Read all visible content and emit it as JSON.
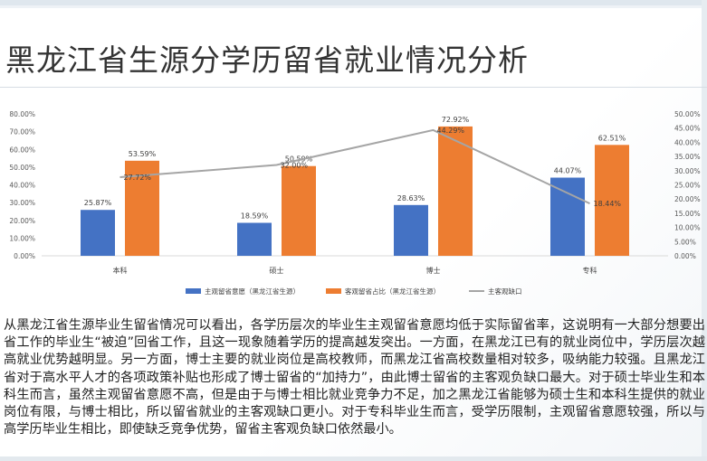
{
  "title": "黑龙江省生源分学历留省就业情况分析",
  "chart_data": {
    "type": "bar",
    "categories": [
      "本科",
      "硕士",
      "博士",
      "专科"
    ],
    "series": [
      {
        "name": "主观留省意愿（黑龙江省生源）",
        "kind": "bar",
        "axis": "left",
        "color": "#4472C4",
        "values": [
          25.87,
          18.59,
          28.63,
          44.07
        ],
        "labels": [
          "25.87%",
          "18.59%",
          "28.63%",
          "44.07%"
        ]
      },
      {
        "name": "客观留省占比（黑龙江省生源）",
        "kind": "bar",
        "axis": "left",
        "color": "#ED7D31",
        "values": [
          53.59,
          50.59,
          72.92,
          62.51
        ],
        "labels": [
          "53.59%",
          "50.59%",
          "72.92%",
          "62.51%"
        ]
      },
      {
        "name": "主客观缺口",
        "kind": "line",
        "axis": "right",
        "color": "#A5A5A5",
        "values": [
          27.72,
          32.0,
          44.29,
          18.44
        ],
        "labels": [
          "27.72%",
          "32.00%",
          "44.29%",
          "18.44%"
        ]
      }
    ],
    "y_left": {
      "min": 0,
      "max": 80,
      "step": 10,
      "ticks": [
        "0.00%",
        "10.00%",
        "20.00%",
        "30.00%",
        "40.00%",
        "50.00%",
        "60.00%",
        "70.00%",
        "80.00%"
      ]
    },
    "y_right": {
      "min": 0,
      "max": 50,
      "step": 5,
      "ticks": [
        "0.00%",
        "5.00%",
        "10.00%",
        "15.00%",
        "20.00%",
        "25.00%",
        "30.00%",
        "35.00%",
        "40.00%",
        "45.00%",
        "50.00%"
      ]
    },
    "grid": false,
    "legend_position": "bottom"
  },
  "paragraph": "从黑龙江省生源毕业生留省情况可以看出，各学历层次的毕业生主观留省意愿均低于实际留省率，这说明有一大部分想要出省工作的毕业生“被迫”回省工作，且这一现象随着学历的提高越发突出。一方面，在黑龙江已有的就业岗位中，学历层次越高就业优势越明显。另一方面，博士主要的就业岗位是高校教师，而黑龙江省高校数量相对较多，吸纳能力较强。且黑龙江省对于高水平人才的各项政策补贴也形成了博士留省的“加持力”，由此博士留省的主客观负缺口最大。对于硕士毕业生和本科生而言，虽然主观留省意愿不高，但是由于与博士相比就业竞争力不足，加之黑龙江省能够为硕士生和本科生提供的就业岗位有限，与博士相比，所以留省就业的主客观缺口更小。对于专科毕业生而言，受学历限制，主观留省意愿较强，所以与高学历毕业生相比，即使缺乏竞争优势，留省主客观负缺口依然最小。"
}
